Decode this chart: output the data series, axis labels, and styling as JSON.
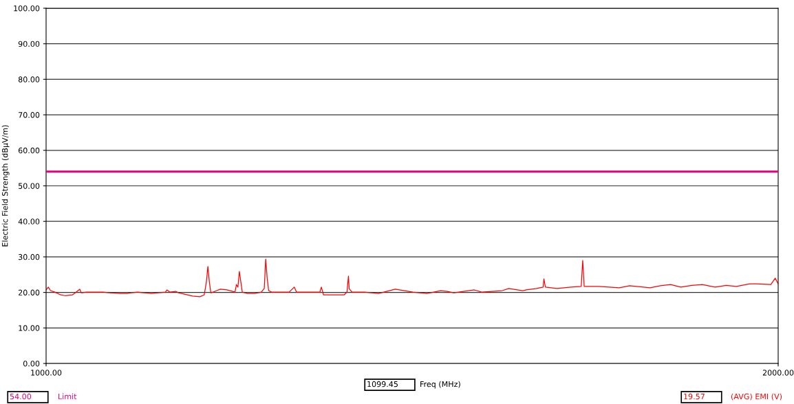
{
  "chart_data": {
    "type": "line",
    "xlabel": "Freq (MHz)",
    "ylabel": "Electric Field Strength (dBμV/m)",
    "xlim": [
      1000,
      2000
    ],
    "xticks": [
      {
        "value": 1000,
        "label": "1000.00"
      },
      {
        "value": 2000,
        "label": "2000.00"
      }
    ],
    "ylim": [
      0,
      100
    ],
    "yticks": [
      {
        "value": 0,
        "label": "0.00"
      },
      {
        "value": 10,
        "label": "10.00"
      },
      {
        "value": 20,
        "label": "20.00"
      },
      {
        "value": 30,
        "label": "30.00"
      },
      {
        "value": 40,
        "label": "40.00"
      },
      {
        "value": 50,
        "label": "50.00"
      },
      {
        "value": 60,
        "label": "60.00"
      },
      {
        "value": 70,
        "label": "70.00"
      },
      {
        "value": 80,
        "label": "80.00"
      },
      {
        "value": 90,
        "label": "90.00"
      },
      {
        "value": 100,
        "label": "100.00"
      }
    ],
    "grid": "y",
    "legend": "bottom right",
    "marker": "none",
    "line_style": "solid",
    "ref_lines": [
      {
        "axis": "y",
        "value": 54,
        "label": "Limit",
        "color": "#e6007e"
      }
    ],
    "annotations": [
      "54.00",
      "1099.45",
      "19.57"
    ],
    "series": [
      {
        "name": "(AVG) EMI (V)",
        "color": "#ff0000",
        "x": [
          1000,
          1003,
          1006,
          1012,
          1020,
          1026,
          1036,
          1046,
          1048,
          1055,
          1078,
          1087,
          1101,
          1111,
          1116,
          1125,
          1134,
          1144,
          1153,
          1163,
          1165,
          1169,
          1177,
          1181,
          1189,
          1200,
          1210,
          1216,
          1219,
          1221,
          1223,
          1225,
          1228,
          1233,
          1238,
          1247,
          1255,
          1258,
          1260,
          1262,
          1264,
          1266,
          1268,
          1275,
          1285,
          1294,
          1298,
          1300,
          1302,
          1304,
          1308,
          1332,
          1339,
          1342,
          1351,
          1369,
          1374,
          1376,
          1379,
          1388,
          1407,
          1411,
          1413,
          1414,
          1418,
          1435,
          1454,
          1477,
          1501,
          1520,
          1539,
          1548,
          1557,
          1585,
          1595,
          1623,
          1632,
          1651,
          1656,
          1670,
          1679,
          1680,
          1682,
          1698,
          1717,
          1731,
          1733,
          1735,
          1755,
          1783,
          1797,
          1816,
          1825,
          1839,
          1853,
          1867,
          1882,
          1896,
          1914,
          1929,
          1943,
          1961,
          1971,
          1990,
          1996,
          2000
        ],
        "values": [
          20.7,
          21.5,
          20.5,
          20.1,
          19.3,
          19.1,
          19.3,
          20.9,
          19.9,
          20.1,
          20.1,
          19.9,
          19.7,
          19.7,
          19.9,
          20.1,
          19.9,
          19.7,
          19.9,
          20.1,
          20.7,
          20.1,
          20.3,
          19.9,
          19.5,
          19.0,
          18.8,
          19.3,
          23.0,
          27.3,
          23.0,
          19.9,
          20.1,
          20.5,
          20.9,
          20.7,
          20.3,
          20.1,
          22.2,
          21.5,
          25.9,
          23.0,
          20.1,
          19.7,
          19.7,
          20.1,
          21.1,
          29.4,
          24.0,
          20.5,
          20.1,
          20.1,
          21.5,
          20.1,
          20.1,
          20.1,
          20.1,
          21.5,
          19.3,
          19.3,
          19.3,
          20.1,
          24.6,
          21.0,
          20.1,
          20.1,
          19.7,
          20.9,
          20.1,
          19.7,
          20.5,
          20.3,
          19.9,
          20.7,
          20.1,
          20.5,
          21.1,
          20.5,
          20.7,
          21.1,
          21.5,
          23.8,
          21.5,
          21.1,
          21.5,
          21.7,
          29.0,
          21.7,
          21.7,
          21.3,
          21.9,
          21.5,
          21.3,
          21.9,
          22.2,
          21.5,
          22.0,
          22.2,
          21.5,
          22.0,
          21.7,
          22.4,
          22.4,
          22.2,
          24.0,
          22.4
        ]
      }
    ]
  }
}
